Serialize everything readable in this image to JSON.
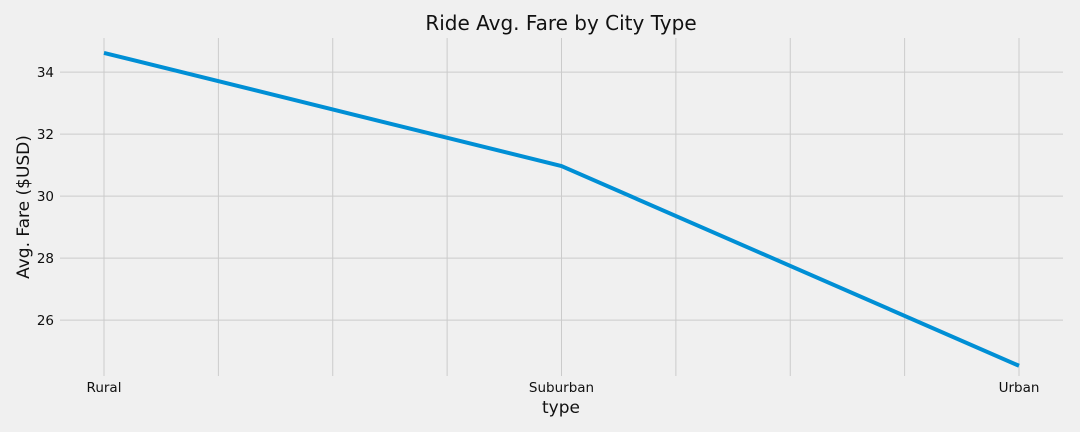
{
  "chart_data": {
    "type": "line",
    "title": "Ride Avg. Fare by City Type",
    "xlabel": "type",
    "ylabel": "Avg. Fare ($USD)",
    "categories": [
      "Rural",
      "Suburban",
      "Urban"
    ],
    "series": [
      {
        "values": [
          34.62,
          30.97,
          24.53
        ],
        "color": "#008fd5"
      }
    ],
    "ylim": [
      24.2,
      35.1
    ],
    "yticks": [
      26,
      28,
      30,
      32,
      34
    ],
    "minor_x_gridlines": 8,
    "grid": true,
    "background": "#f0f0f0"
  }
}
